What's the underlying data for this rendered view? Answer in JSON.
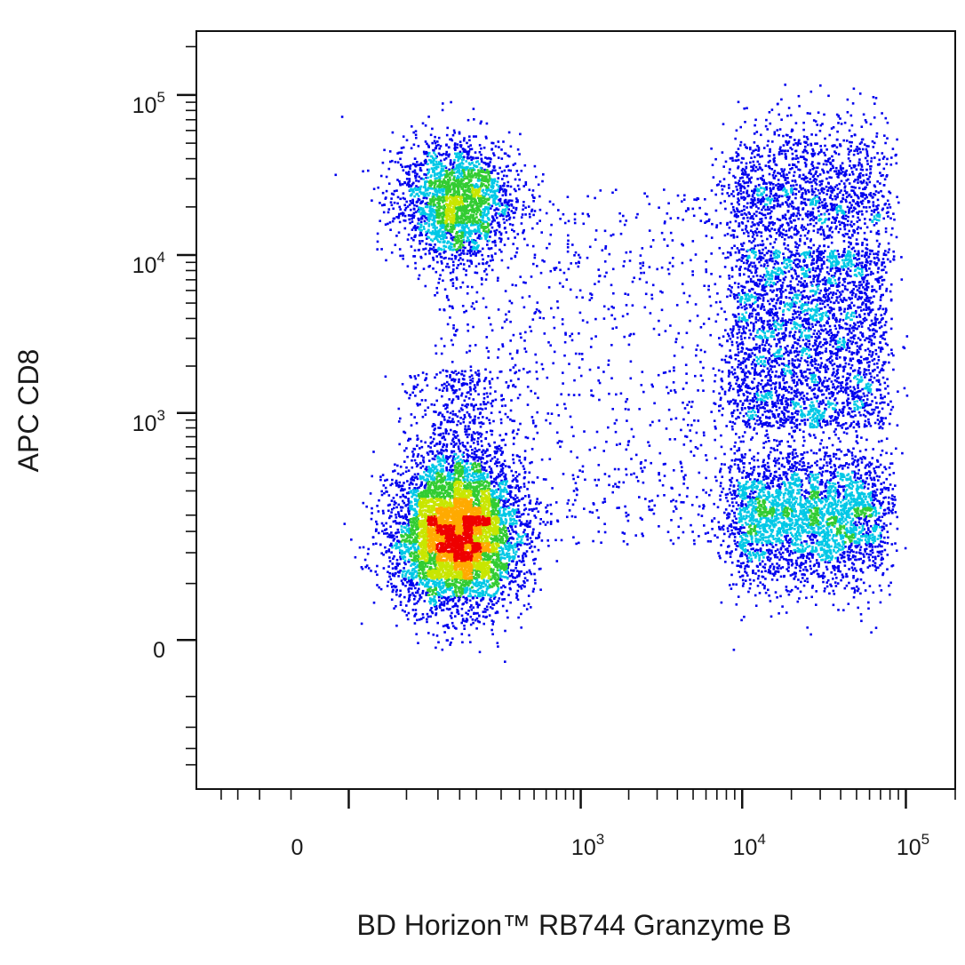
{
  "chart_data": {
    "type": "scatter",
    "subtype": "flow-cytometry-pseudocolor-density",
    "xlabel": "BD Horizon™ RB744 Granzyme B",
    "ylabel": "APC CD8",
    "x_scale": "biexponential",
    "y_scale": "biexponential",
    "xlim": [
      -300,
      200000
    ],
    "ylim": [
      -300,
      250000
    ],
    "x_ticks": [
      {
        "value": 0,
        "label": "0",
        "exp": ""
      },
      {
        "value": 1000,
        "label": "10",
        "exp": "3"
      },
      {
        "value": 10000,
        "label": "10",
        "exp": "4"
      },
      {
        "value": 100000,
        "label": "10",
        "exp": "5"
      }
    ],
    "y_ticks": [
      {
        "value": 0,
        "label": "0",
        "exp": ""
      },
      {
        "value": 1000,
        "label": "10",
        "exp": "3"
      },
      {
        "value": 10000,
        "label": "10",
        "exp": "4"
      },
      {
        "value": 100000,
        "label": "10",
        "exp": "5"
      }
    ],
    "density_colors": [
      "#0000ee",
      "#00c8e6",
      "#33cc33",
      "#c8e600",
      "#ffaa00",
      "#ee0000"
    ],
    "grid": false,
    "legend": "none",
    "populations": [
      {
        "x_center": 140,
        "y_center": 22000,
        "relative_events": 0.14,
        "peak_density": 0.9
      },
      {
        "x_center": 140,
        "y_center": 140,
        "relative_events": 0.34,
        "peak_density": 1.0
      },
      {
        "x_center": 25000,
        "y_center": 200,
        "relative_events": 0.18,
        "peak_density": 0.45
      },
      {
        "x_center": 25000,
        "y_center": 3000,
        "relative_events": 0.17,
        "peak_density": 0.35
      },
      {
        "x_center": 25000,
        "y_center": 25000,
        "relative_events": 0.09,
        "peak_density": 0.4
      },
      {
        "x_center": 2000,
        "y_center": 2000,
        "relative_events": 0.08,
        "peak_density": 0.15
      }
    ]
  }
}
